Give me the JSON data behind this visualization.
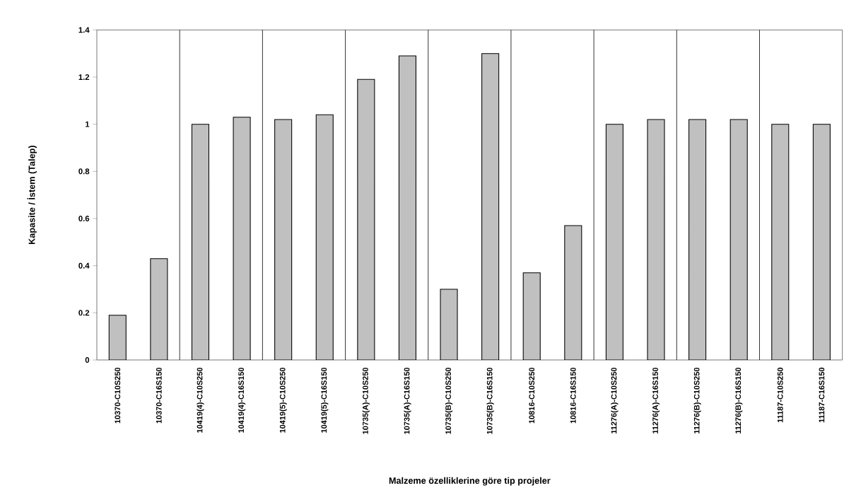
{
  "chart_data": {
    "type": "bar",
    "xlabel": "Malzeme özelliklerine göre tip projeler",
    "ylabel": "Kapasite / İstem (Talep)",
    "categories": [
      "10370-C10S250",
      "10370-C16S150",
      "10419(4)-C10S250",
      "10419(4)-C16S150",
      "10419(5)-C10S250",
      "10419(5)-C16S150",
      "10735(A)-C10S250",
      "10735(A)-C16S150",
      "10735(B)-C10S250",
      "10735(B)-C16S150",
      "10816-C10S250",
      "10816-C16S150",
      "11276(A)-C10S250",
      "11276(A)-C16S150",
      "11276(B)-C10S250",
      "11276(B)-C16S150",
      "11187-C10S250",
      "11187-C16S150"
    ],
    "values": [
      0.19,
      0.43,
      1.0,
      1.03,
      1.02,
      1.04,
      1.19,
      1.29,
      0.3,
      1.3,
      0.37,
      0.57,
      1.0,
      1.02,
      1.02,
      1.02,
      1.0,
      1.0
    ],
    "color": "#c0c0c0",
    "ylim": [
      0,
      1.4
    ],
    "yticks": [
      0,
      0.2,
      0.4,
      0.6,
      0.8,
      1,
      1.2,
      1.4
    ],
    "grid": "x"
  }
}
